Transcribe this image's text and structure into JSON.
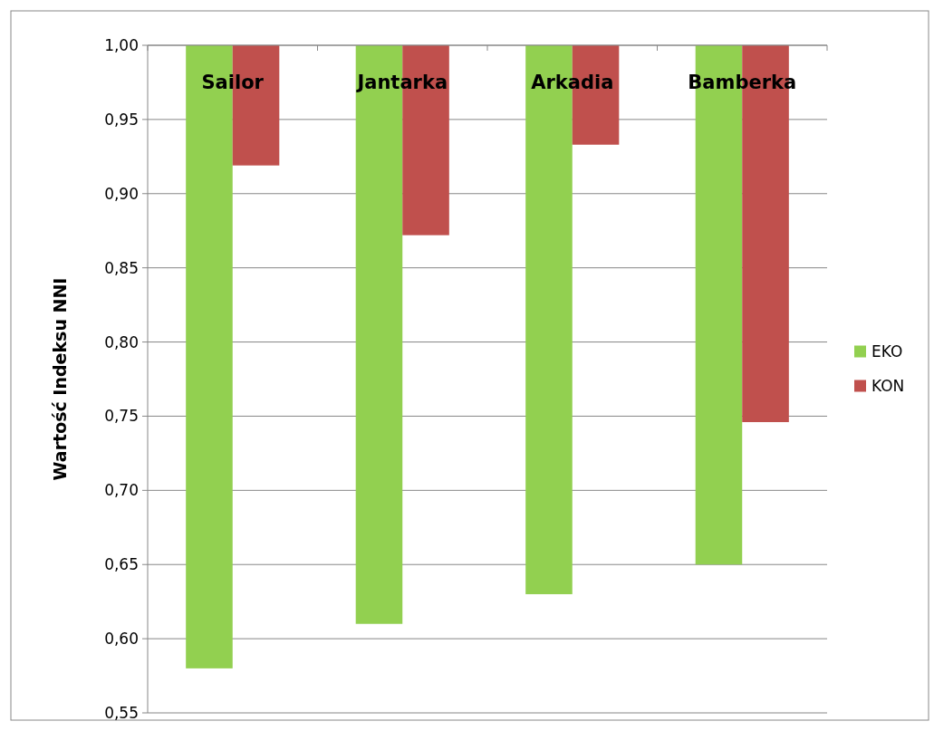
{
  "chart_data": {
    "type": "bar",
    "ylabel": "Wartość Indeksu NNI",
    "categories": [
      "Sailor",
      "Jantarka",
      "Arkadia",
      "Bamberka"
    ],
    "series": [
      {
        "name": "EKO",
        "color": "#92d050",
        "base": [
          1.0,
          1.0,
          1.0,
          1.0
        ],
        "values": [
          -0.42,
          -0.39,
          -0.37,
          -0.35
        ]
      },
      {
        "name": "KON",
        "color": "#c0504d",
        "base": [
          1.0,
          1.0,
          1.0,
          1.0
        ],
        "values": [
          -0.081,
          -0.128,
          -0.067,
          -0.254
        ]
      }
    ],
    "ylim": [
      0.55,
      1.0
    ],
    "yticks": [
      {
        "value": 0.55,
        "label": "0,55"
      },
      {
        "value": 0.6,
        "label": "0,60"
      },
      {
        "value": 0.65,
        "label": "0,65"
      },
      {
        "value": 0.7,
        "label": "0,70"
      },
      {
        "value": 0.75,
        "label": "0,75"
      },
      {
        "value": 0.8,
        "label": "0,80"
      },
      {
        "value": 0.85,
        "label": "0,85"
      },
      {
        "value": 0.9,
        "label": "0,90"
      },
      {
        "value": 0.95,
        "label": "0,95"
      },
      {
        "value": 1.0,
        "label": "1,00"
      }
    ],
    "grid": "y",
    "legend": "right"
  }
}
